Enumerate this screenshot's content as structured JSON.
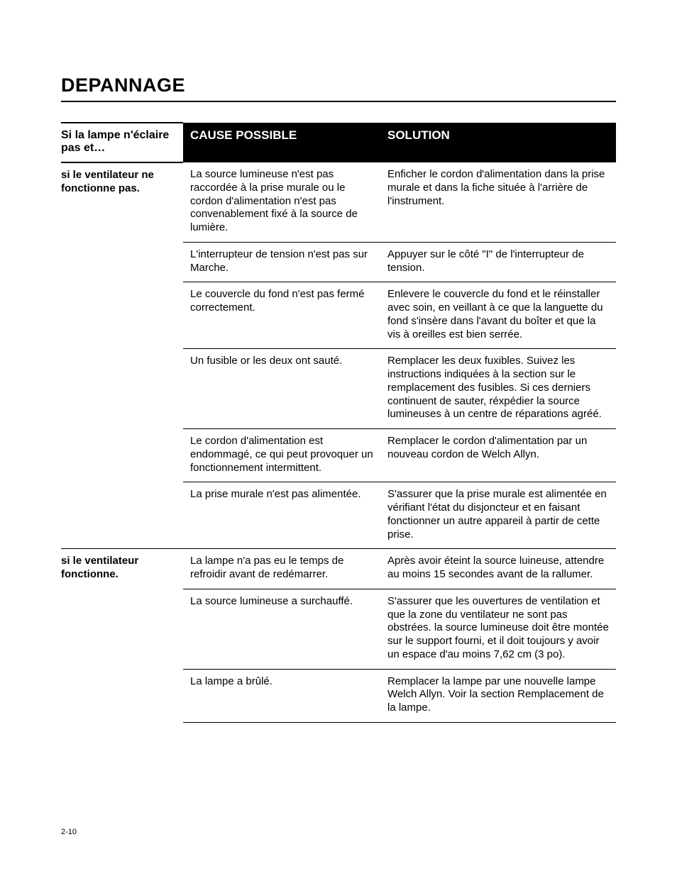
{
  "section_title": "DEPANNAGE",
  "page_number": "2-10",
  "table": {
    "header": {
      "condition": "Si la lampe n'éclaire pas et…",
      "cause": "CAUSE POSSIBLE",
      "solution": "SOLUTION"
    },
    "groups": [
      {
        "subcondition": "si le ventilateur ne fonctionne pas.",
        "rows": [
          {
            "cause": "La source lumineuse n'est pas raccordée à la prise murale ou le cordon d'alimentation n'est pas convenablement fixé à la source de lumière.",
            "solution": "Enficher le cordon d'alimentation dans la prise murale et dans la fiche située à l'arrière de l'instrument."
          },
          {
            "cause": "L'interrupteur de tension n'est pas sur Marche.",
            "solution": "Appuyer sur le côté \"I\" de l'interrupteur de tension."
          },
          {
            "cause": "Le couvercle du fond n'est pas fermé correctement.",
            "solution": "Enlevere le couvercle du fond et le réinstaller avec soin, en veillant à ce que la languette du fond s'insère dans l'avant du boîter et que la vis à oreilles est bien serrée."
          },
          {
            "cause": "Un fusible or les deux ont sauté.",
            "solution": "Remplacer les deux fuxibles. Suivez les instructions indiquées à la section sur le remplacement des fusibles. Si ces derniers continuent de sauter, réxpédier la source lumineuses à un centre de réparations agréé."
          },
          {
            "cause": "Le cordon d'alimentation est endommagé, ce qui peut provoquer un fonctionnement intermittent.",
            "solution": "Remplacer le cordon d'alimentation par un nouveau cordon de Welch Allyn."
          },
          {
            "cause": "La prise murale n'est pas alimentée.",
            "solution": "S'assurer que la prise murale est alimentée en vérifiant l'état du disjoncteur et en faisant fonctionner un autre appareil à partir de cette prise."
          }
        ]
      },
      {
        "subcondition": "si le ventilateur fonctionne.",
        "rows": [
          {
            "cause": "La lampe n'a pas eu le temps de refroidir avant de redémarrer.",
            "solution": "Après avoir éteint la source luineuse, attendre au moins 15 secondes avant de la rallumer."
          },
          {
            "cause": "La source lumineuse a surchauffé.",
            "solution": "S'assurer que les ouvertures de ventilation et que la zone du ventilateur ne sont pas obstrées. la source lumineuse doit être montée sur le support fourni, et il doit toujours y avoir un espace d'au moins 7,62 cm (3 po)."
          },
          {
            "cause": "La lampe a brûlé.",
            "solution": "Remplacer la lampe par une nouvelle lampe Welch Allyn. Voir la section Remplacement de la lampe."
          }
        ]
      }
    ]
  }
}
